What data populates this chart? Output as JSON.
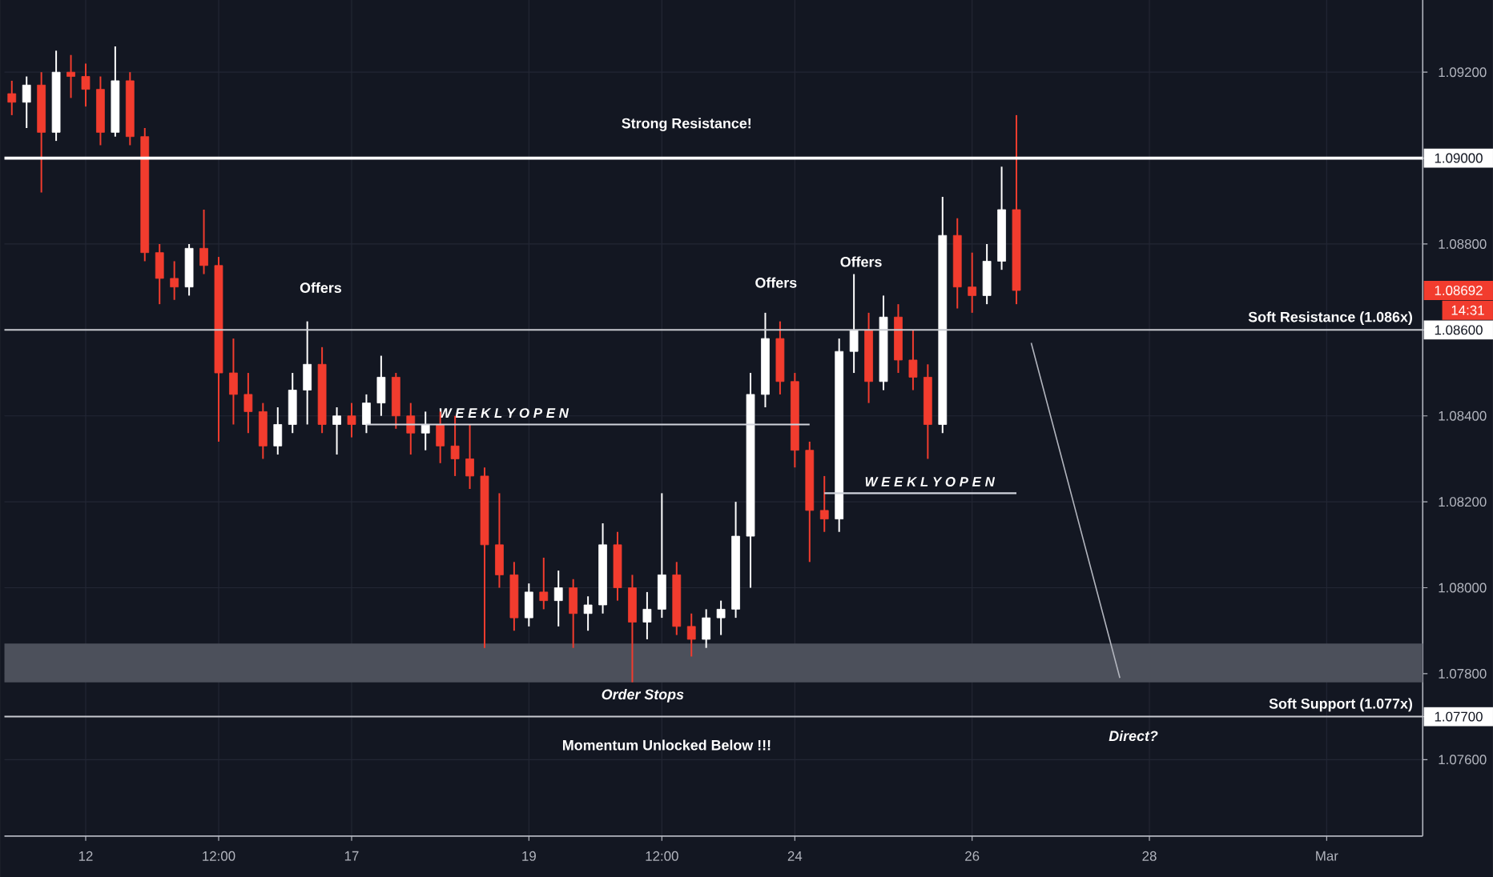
{
  "chart_data": {
    "type": "candlestick",
    "categories": [
      null,
      null,
      null,
      null,
      null,
      "12",
      null,
      null,
      null,
      null,
      null,
      null,
      null,
      null,
      "12:00",
      null,
      null,
      null,
      null,
      null,
      null,
      null,
      null,
      "17",
      null,
      null,
      null,
      null,
      null,
      null,
      null,
      null,
      null,
      null,
      null,
      "19",
      null,
      null,
      null,
      null,
      null,
      null,
      null,
      null,
      "12:00",
      null,
      null,
      null,
      null,
      null,
      null,
      null,
      null,
      "24",
      null,
      null,
      null,
      null,
      null,
      null,
      null,
      null,
      null,
      null,
      null,
      "26",
      null,
      null,
      null,
      null,
      null,
      null,
      null,
      null,
      null,
      null,
      null,
      "28",
      null,
      null,
      null,
      null,
      null,
      null,
      null,
      null,
      null,
      null,
      null,
      "Mar",
      null,
      null,
      null,
      null,
      null,
      null
    ],
    "ohlc": [
      [
        1.0915,
        1.0918,
        1.091,
        1.0913
      ],
      [
        1.0913,
        1.0919,
        1.0907,
        1.0917
      ],
      [
        1.0917,
        1.092,
        1.0892,
        1.0906
      ],
      [
        1.0906,
        1.0925,
        1.0904,
        1.092
      ],
      [
        1.092,
        1.0924,
        1.0914,
        1.0919
      ],
      [
        1.0919,
        1.0922,
        1.0912,
        1.0916
      ],
      [
        1.0916,
        1.0919,
        1.0903,
        1.0906
      ],
      [
        1.0906,
        1.0926,
        1.0905,
        1.0918
      ],
      [
        1.0918,
        1.092,
        1.0903,
        1.0905
      ],
      [
        1.0905,
        1.0907,
        1.0876,
        1.0878
      ],
      [
        1.0878,
        1.088,
        1.0866,
        1.0872
      ],
      [
        1.0872,
        1.0876,
        1.0867,
        1.087
      ],
      [
        1.087,
        1.088,
        1.0868,
        1.0879
      ],
      [
        1.0879,
        1.0888,
        1.0873,
        1.0875
      ],
      [
        1.0875,
        1.0877,
        1.0834,
        1.085
      ],
      [
        1.085,
        1.0858,
        1.0838,
        1.0845
      ],
      [
        1.0845,
        1.085,
        1.0836,
        1.0841
      ],
      [
        1.0841,
        1.0843,
        1.083,
        1.0833
      ],
      [
        1.0833,
        1.0842,
        1.0831,
        1.0838
      ],
      [
        1.0838,
        1.085,
        1.0836,
        1.0846
      ],
      [
        1.0846,
        1.0862,
        1.0838,
        1.0852
      ],
      [
        1.0852,
        1.0856,
        1.0836,
        1.0838
      ],
      [
        1.0838,
        1.0842,
        1.0831,
        1.084
      ],
      [
        1.084,
        1.0843,
        1.0835,
        1.0838
      ],
      [
        1.0838,
        1.0845,
        1.0836,
        1.0843
      ],
      [
        1.0843,
        1.0854,
        1.084,
        1.0849
      ],
      [
        1.0849,
        1.085,
        1.0837,
        1.084
      ],
      [
        1.084,
        1.0843,
        1.0831,
        1.0836
      ],
      [
        1.0836,
        1.0841,
        1.0832,
        1.0838
      ],
      [
        1.0838,
        1.0841,
        1.0829,
        1.0833
      ],
      [
        1.0833,
        1.084,
        1.0826,
        1.083
      ],
      [
        1.083,
        1.0838,
        1.0823,
        1.0826
      ],
      [
        1.0826,
        1.0828,
        1.0786,
        1.081
      ],
      [
        1.081,
        1.0822,
        1.08,
        1.0803
      ],
      [
        1.0803,
        1.0806,
        1.079,
        1.0793
      ],
      [
        1.0793,
        1.0801,
        1.0791,
        1.0799
      ],
      [
        1.0799,
        1.0807,
        1.0795,
        1.0797
      ],
      [
        1.0797,
        1.0804,
        1.0791,
        1.08
      ],
      [
        1.08,
        1.0802,
        1.0786,
        1.0794
      ],
      [
        1.0794,
        1.0798,
        1.079,
        1.0796
      ],
      [
        1.0796,
        1.0815,
        1.0794,
        1.081
      ],
      [
        1.081,
        1.0813,
        1.0797,
        1.08
      ],
      [
        1.08,
        1.0803,
        1.0778,
        1.0792
      ],
      [
        1.0792,
        1.0799,
        1.0788,
        1.0795
      ],
      [
        1.0795,
        1.0822,
        1.0793,
        1.0803
      ],
      [
        1.0803,
        1.0806,
        1.0789,
        1.0791
      ],
      [
        1.0791,
        1.0794,
        1.0784,
        1.0788
      ],
      [
        1.0788,
        1.0795,
        1.0786,
        1.0793
      ],
      [
        1.0793,
        1.0797,
        1.0789,
        1.0795
      ],
      [
        1.0795,
        1.082,
        1.0793,
        1.0812
      ],
      [
        1.0812,
        1.085,
        1.08,
        1.0845
      ],
      [
        1.0845,
        1.0864,
        1.0842,
        1.0858
      ],
      [
        1.0858,
        1.0862,
        1.0845,
        1.0848
      ],
      [
        1.0848,
        1.085,
        1.0828,
        1.0832
      ],
      [
        1.0832,
        1.0834,
        1.0806,
        1.0818
      ],
      [
        1.0818,
        1.0826,
        1.0813,
        1.0816
      ],
      [
        1.0816,
        1.0858,
        1.0813,
        1.0855
      ],
      [
        1.0855,
        1.0873,
        1.085,
        1.086
      ],
      [
        1.086,
        1.0864,
        1.0843,
        1.0848
      ],
      [
        1.0848,
        1.0868,
        1.0846,
        1.0863
      ],
      [
        1.0863,
        1.0866,
        1.085,
        1.0853
      ],
      [
        1.0853,
        1.086,
        1.0846,
        1.0849
      ],
      [
        1.0849,
        1.0852,
        1.083,
        1.0838
      ],
      [
        1.0838,
        1.0891,
        1.0836,
        1.0882
      ],
      [
        1.0882,
        1.0886,
        1.0865,
        1.087
      ],
      [
        1.087,
        1.0878,
        1.0864,
        1.0868
      ],
      [
        1.0868,
        1.088,
        1.0866,
        1.0876
      ],
      [
        1.0876,
        1.0898,
        1.0874,
        1.0888
      ],
      [
        1.0888,
        1.091,
        1.0866,
        1.08692
      ],
      null,
      null,
      null,
      null,
      null,
      null,
      null,
      null,
      null,
      null,
      null,
      null,
      null,
      null,
      null,
      null,
      null,
      null,
      null,
      null,
      null,
      null,
      null,
      null,
      null,
      null,
      null
    ],
    "colors": [
      "#f23c2e",
      "#ffffff",
      "#f23c2e",
      "#ffffff",
      "#f23c2e",
      "#f23c2e",
      "#f23c2e",
      "#ffffff",
      "#f23c2e",
      "#f23c2e",
      "#f23c2e",
      "#f23c2e",
      "#ffffff",
      "#f23c2e",
      "#f23c2e",
      "#f23c2e",
      "#f23c2e",
      "#f23c2e",
      "#ffffff",
      "#ffffff",
      "#ffffff",
      "#f23c2e",
      "#ffffff",
      "#f23c2e",
      "#ffffff",
      "#ffffff",
      "#f23c2e",
      "#f23c2e",
      "#ffffff",
      "#f23c2e",
      "#f23c2e",
      "#f23c2e",
      "#f23c2e",
      "#f23c2e",
      "#f23c2e",
      "#ffffff",
      "#f23c2e",
      "#ffffff",
      "#f23c2e",
      "#ffffff",
      "#ffffff",
      "#f23c2e",
      "#f23c2e",
      "#ffffff",
      "#ffffff",
      "#f23c2e",
      "#f23c2e",
      "#ffffff",
      "#ffffff",
      "#ffffff",
      "#ffffff",
      "#ffffff",
      "#f23c2e",
      "#f23c2e",
      "#f23c2e",
      "#f23c2e",
      "#ffffff",
      "#ffffff",
      "#f23c2e",
      "#ffffff",
      "#f23c2e",
      "#f23c2e",
      "#f23c2e",
      "#ffffff",
      "#f23c2e",
      "#f23c2e",
      "#ffffff",
      "#ffffff",
      "#f23c2e",
      null,
      null,
      null,
      null,
      null,
      null,
      null,
      null,
      null,
      null,
      null,
      null,
      null,
      null,
      null,
      null,
      null,
      null,
      null,
      null,
      null,
      null,
      null,
      null,
      null,
      null,
      null
    ],
    "series": [
      {
        "type": "line",
        "name": "W E E K L Y  O P E N",
        "color": "#d1d4dc",
        "values": [
          null,
          null,
          null,
          null,
          null,
          null,
          null,
          null,
          null,
          null,
          null,
          null,
          null,
          null,
          null,
          null,
          null,
          null,
          null,
          null,
          null,
          null,
          null,
          null,
          1.0838,
          1.0838,
          1.0838,
          1.0838,
          1.0838,
          1.0838,
          1.0838,
          1.0838,
          1.0838,
          1.0838,
          1.0838,
          1.0838,
          1.0838,
          1.0838,
          1.0838,
          1.0838,
          1.0838,
          1.0838,
          1.0838,
          1.0838,
          1.0838,
          1.0838,
          1.0838,
          1.0838,
          1.0838,
          1.0838,
          1.0838,
          1.0838,
          1.0838,
          1.0838,
          1.0838,
          null,
          null,
          null,
          null,
          null,
          null,
          null,
          null,
          null,
          null,
          null,
          null,
          null,
          null,
          null,
          null,
          null,
          null,
          null,
          null,
          null,
          null,
          null,
          null,
          null,
          null,
          null,
          null,
          null,
          null,
          null,
          null,
          null,
          null,
          null,
          null,
          null,
          null,
          null,
          null,
          null
        ]
      },
      {
        "type": "line",
        "name": "W E E K L Y  O P E N",
        "color": "#d1d4dc",
        "values": [
          null,
          null,
          null,
          null,
          null,
          null,
          null,
          null,
          null,
          null,
          null,
          null,
          null,
          null,
          null,
          null,
          null,
          null,
          null,
          null,
          null,
          null,
          null,
          null,
          null,
          null,
          null,
          null,
          null,
          null,
          null,
          null,
          null,
          null,
          null,
          null,
          null,
          null,
          null,
          null,
          null,
          null,
          null,
          null,
          null,
          null,
          null,
          null,
          null,
          null,
          null,
          null,
          null,
          null,
          null,
          1.0822,
          1.0822,
          1.0822,
          1.0822,
          1.0822,
          1.0822,
          1.0822,
          1.0822,
          1.0822,
          1.0822,
          1.0822,
          1.0822,
          1.0822,
          1.0822,
          null,
          null,
          null,
          null,
          null,
          null,
          null,
          null,
          null,
          null,
          null,
          null,
          null,
          null,
          null,
          null,
          null,
          null,
          null,
          null,
          null,
          null,
          null,
          null,
          null,
          null,
          null
        ]
      },
      {
        "type": "line",
        "color": "#b2b5be",
        "values": [
          null,
          null,
          null,
          null,
          null,
          null,
          null,
          null,
          null,
          null,
          null,
          null,
          null,
          null,
          null,
          null,
          null,
          null,
          null,
          null,
          null,
          null,
          null,
          null,
          null,
          null,
          null,
          null,
          null,
          null,
          null,
          null,
          null,
          null,
          null,
          null,
          null,
          null,
          null,
          null,
          null,
          null,
          null,
          null,
          null,
          null,
          null,
          null,
          null,
          null,
          null,
          null,
          null,
          null,
          null,
          null,
          null,
          null,
          null,
          null,
          null,
          null,
          null,
          null,
          null,
          null,
          null,
          null,
          null,
          1.0857,
          1.0844,
          1.0831,
          1.0818,
          1.0805,
          1.0792,
          1.0779,
          null,
          null,
          null,
          null,
          null,
          null,
          null,
          null,
          null,
          null,
          null,
          null,
          null,
          null,
          null,
          null,
          null,
          null,
          null,
          null
        ]
      }
    ],
    "ylim": [
      1.07422,
      1.09368
    ],
    "yticks": [
      {
        "value": 1.076,
        "label": "1.07600"
      },
      {
        "value": 1.077,
        "label": "1.07700"
      },
      {
        "value": 1.078,
        "label": "1.07800"
      },
      {
        "value": 1.08,
        "label": "1.08000"
      },
      {
        "value": 1.082,
        "label": "1.08200"
      },
      {
        "value": 1.084,
        "label": "1.08400"
      },
      {
        "value": 1.086,
        "label": "1.08600"
      },
      {
        "value": 1.088,
        "label": "1.08800"
      },
      {
        "value": 1.09,
        "label": "1.09000"
      },
      {
        "value": 1.092,
        "label": "1.09200"
      }
    ],
    "grid": true,
    "ref_lines": [
      {
        "axis": "y",
        "value": 1.09,
        "color": "#ffffff"
      },
      {
        "axis": "y",
        "value": 1.086,
        "label": "Soft Resistance (1.086x)",
        "color": "#c8cad0"
      },
      {
        "axis": "y",
        "value": 1.077,
        "label": "Soft Support (1.077x)",
        "color": "#c8cad0"
      }
    ],
    "bands": [
      {
        "axis": "y",
        "from": 1.0778,
        "to": 1.0787,
        "label": "Order Stops",
        "color": "#4c505b"
      }
    ],
    "annotations": [
      "Strong Resistance!",
      "Offers",
      "Offers",
      "Offers",
      "Momentum Unlocked Below !!!",
      "Direct?",
      "1.08692",
      "14:31"
    ]
  }
}
